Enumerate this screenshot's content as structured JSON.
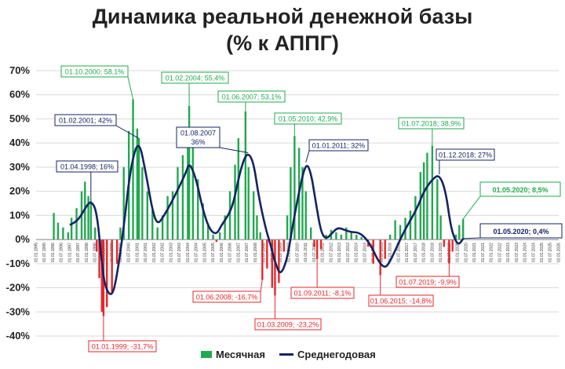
{
  "chart_data": {
    "type": "bar+line",
    "title": "Динамика реальной денежной базы",
    "subtitle": "(% к АППГ)",
    "y_ticks": [
      "70%",
      "60%",
      "50%",
      "40%",
      "30%",
      "20%",
      "10%",
      "0%",
      "-10%",
      "-20%",
      "-30%",
      "-40%"
    ],
    "ylim": [
      -45,
      72
    ],
    "x_start_year": 1995,
    "x_end_year": 2026,
    "x_tick_labels": [
      "01.01.1995",
      "01.07.1995",
      "01.01.1996",
      "01.07.1996",
      "01.01.1997",
      "01.07.1997",
      "01.01.1998",
      "01.07.1998",
      "01.01.1999",
      "01.07.1999",
      "01.01.2000",
      "01.07.2000",
      "01.01.2001",
      "01.07.2001",
      "01.01.2002",
      "01.07.2002",
      "01.01.2003",
      "01.07.2003",
      "01.01.2004",
      "01.07.2004",
      "01.01.2005",
      "01.07.2005",
      "01.01.2006",
      "01.07.2006",
      "01.01.2007",
      "01.07.2007",
      "01.01.2008",
      "01.07.2008",
      "01.01.2009",
      "01.07.2009",
      "01.01.2010",
      "01.07.2010",
      "01.01.2011",
      "01.07.2011",
      "01.01.2012",
      "01.07.2012",
      "01.01.2013",
      "01.07.2013",
      "01.01.2014",
      "01.07.2014",
      "01.01.2015",
      "01.07.2015",
      "01.01.2016",
      "01.07.2016",
      "01.01.2017",
      "01.07.2017",
      "01.01.2018",
      "01.07.2018",
      "01.01.2019",
      "01.07.2019",
      "01.01.2020",
      "01.07.2020",
      "01.01.2021",
      "01.07.2021",
      "01.01.2022",
      "01.07.2022",
      "01.01.2023",
      "01.07.2023",
      "01.01.2024",
      "01.07.2024",
      "01.01.2025",
      "01.07.2025",
      "01.01.2026"
    ],
    "series": [
      {
        "name": "Месячная",
        "kind": "bar",
        "positive_color": "#21a84f",
        "negative_color": "#e8262a",
        "points": [
          [
            1996.0,
            0
          ],
          [
            1996.05,
            11
          ],
          [
            1996.3,
            7
          ],
          [
            1996.6,
            5
          ],
          [
            1996.9,
            3
          ],
          [
            1997.1,
            9
          ],
          [
            1997.4,
            13
          ],
          [
            1997.7,
            20
          ],
          [
            1997.9,
            24
          ],
          [
            1998.1,
            18
          ],
          [
            1998.25,
            16
          ],
          [
            1998.5,
            5
          ],
          [
            1998.6,
            -5
          ],
          [
            1998.75,
            -16
          ],
          [
            1998.9,
            -30
          ],
          [
            1999.0,
            -31.7
          ],
          [
            1999.2,
            -28
          ],
          [
            1999.5,
            -22
          ],
          [
            1999.8,
            -10
          ],
          [
            2000.0,
            5
          ],
          [
            2000.2,
            30
          ],
          [
            2000.5,
            45
          ],
          [
            2000.75,
            58.1
          ],
          [
            2001.0,
            46
          ],
          [
            2001.1,
            42
          ],
          [
            2001.3,
            30
          ],
          [
            2001.6,
            20
          ],
          [
            2001.9,
            12
          ],
          [
            2002.2,
            5
          ],
          [
            2002.5,
            10
          ],
          [
            2002.8,
            18
          ],
          [
            2003.1,
            20
          ],
          [
            2003.4,
            30
          ],
          [
            2003.7,
            35
          ],
          [
            2004.0,
            42
          ],
          [
            2004.08,
            55.4
          ],
          [
            2004.3,
            38
          ],
          [
            2004.6,
            25
          ],
          [
            2004.9,
            15
          ],
          [
            2005.2,
            6
          ],
          [
            2005.5,
            2
          ],
          [
            2005.7,
            -1
          ],
          [
            2005.9,
            3
          ],
          [
            2006.2,
            10
          ],
          [
            2006.5,
            20
          ],
          [
            2006.8,
            31
          ],
          [
            2007.0,
            42
          ],
          [
            2007.42,
            53.1
          ],
          [
            2007.6,
            30
          ],
          [
            2007.9,
            20
          ],
          [
            2008.1,
            10
          ],
          [
            2008.3,
            3
          ],
          [
            2008.42,
            -16.7
          ],
          [
            2008.7,
            -12
          ],
          [
            2009.0,
            -20
          ],
          [
            2009.17,
            -23.2
          ],
          [
            2009.4,
            -18
          ],
          [
            2009.7,
            -5
          ],
          [
            2009.9,
            10
          ],
          [
            2010.1,
            30
          ],
          [
            2010.33,
            42.9
          ],
          [
            2010.6,
            38
          ],
          [
            2010.8,
            30
          ],
          [
            2011.0,
            20
          ],
          [
            2011.3,
            5
          ],
          [
            2011.5,
            -3
          ],
          [
            2011.67,
            -8.1
          ],
          [
            2011.9,
            -4
          ],
          [
            2012.2,
            2
          ],
          [
            2012.5,
            4
          ],
          [
            2012.8,
            3
          ],
          [
            2013.1,
            2
          ],
          [
            2013.4,
            5
          ],
          [
            2013.7,
            3
          ],
          [
            2014.0,
            2
          ],
          [
            2014.3,
            1
          ],
          [
            2014.7,
            -3
          ],
          [
            2015.0,
            -10
          ],
          [
            2015.42,
            -14.8
          ],
          [
            2015.7,
            -8
          ],
          [
            2016.0,
            2
          ],
          [
            2016.3,
            8
          ],
          [
            2016.6,
            6
          ],
          [
            2016.9,
            9
          ],
          [
            2017.2,
            12
          ],
          [
            2017.5,
            18
          ],
          [
            2017.8,
            28
          ],
          [
            2018.0,
            32
          ],
          [
            2018.2,
            36
          ],
          [
            2018.5,
            38.9
          ],
          [
            2018.8,
            25
          ],
          [
            2019.0,
            10
          ],
          [
            2019.2,
            -3
          ],
          [
            2019.5,
            -9.9
          ],
          [
            2019.7,
            -5
          ],
          [
            2019.9,
            2
          ],
          [
            2020.1,
            6
          ],
          [
            2020.33,
            8.5
          ]
        ]
      },
      {
        "name": "Среднегодовая",
        "kind": "line",
        "color": "#142363",
        "points": [
          [
            1997.0,
            6
          ],
          [
            1997.5,
            8
          ],
          [
            1998.0,
            14
          ],
          [
            1998.25,
            16
          ],
          [
            1998.6,
            12
          ],
          [
            1998.9,
            -10
          ],
          [
            1999.1,
            -20
          ],
          [
            1999.5,
            -24
          ],
          [
            1999.8,
            -15
          ],
          [
            2000.2,
            5
          ],
          [
            2000.6,
            30
          ],
          [
            2001.08,
            42
          ],
          [
            2001.5,
            28
          ],
          [
            2001.9,
            12
          ],
          [
            2002.2,
            6
          ],
          [
            2002.6,
            10
          ],
          [
            2003.0,
            15
          ],
          [
            2003.5,
            22
          ],
          [
            2003.9,
            28
          ],
          [
            2004.1,
            32
          ],
          [
            2004.5,
            25
          ],
          [
            2004.9,
            12
          ],
          [
            2005.3,
            4
          ],
          [
            2005.7,
            2
          ],
          [
            2006.0,
            6
          ],
          [
            2006.4,
            10
          ],
          [
            2006.7,
            15
          ],
          [
            2007.0,
            25
          ],
          [
            2007.3,
            33
          ],
          [
            2007.58,
            36
          ],
          [
            2007.9,
            32
          ],
          [
            2008.2,
            18
          ],
          [
            2008.6,
            5
          ],
          [
            2008.9,
            -2
          ],
          [
            2009.2,
            -10
          ],
          [
            2009.5,
            -15
          ],
          [
            2009.9,
            -8
          ],
          [
            2010.2,
            5
          ],
          [
            2010.6,
            20
          ],
          [
            2011.0,
            32
          ],
          [
            2011.3,
            28
          ],
          [
            2011.6,
            15
          ],
          [
            2011.9,
            3
          ],
          [
            2012.2,
            0
          ],
          [
            2012.6,
            3
          ],
          [
            2012.9,
            5
          ],
          [
            2013.3,
            4
          ],
          [
            2013.7,
            3
          ],
          [
            2014.1,
            3
          ],
          [
            2014.5,
            1
          ],
          [
            2014.9,
            -3
          ],
          [
            2015.3,
            -9
          ],
          [
            2015.7,
            -12
          ],
          [
            2016.0,
            -9
          ],
          [
            2016.4,
            -3
          ],
          [
            2016.8,
            3
          ],
          [
            2017.2,
            8
          ],
          [
            2017.6,
            13
          ],
          [
            2018.0,
            20
          ],
          [
            2018.5,
            25
          ],
          [
            2018.92,
            27
          ],
          [
            2019.3,
            20
          ],
          [
            2019.6,
            5
          ],
          [
            2019.9,
            -1
          ],
          [
            2020.1,
            -2
          ],
          [
            2020.33,
            0.4
          ]
        ]
      }
    ],
    "annotations": [
      {
        "text": "01.10.2000; 58,1%",
        "series": "Месячная"
      },
      {
        "text": "01.02.2004; 55,4%",
        "series": "Месячная"
      },
      {
        "text": "01.06.2007; 53,1%",
        "series": "Месячная"
      },
      {
        "text": "01.05.2010; 42,9%",
        "series": "Месячная"
      },
      {
        "text": "01.07.2018; 38,9%",
        "series": "Месячная"
      },
      {
        "text": "01.02.2001; 42%",
        "series": "Среднегодовая"
      },
      {
        "text": "01.08.2007",
        "text2": "36%",
        "series": "Среднегодовая"
      },
      {
        "text": "01.04.1998; 16%",
        "series": "Среднегодовая"
      },
      {
        "text": "01.01.2011; 32%",
        "series": "Среднегодовая"
      },
      {
        "text": "01.12.2018; 27%",
        "series": "Среднегодовая"
      },
      {
        "text": "01.05.2020; 8,5%",
        "series": "Месячная",
        "large": true
      },
      {
        "text": "01.05.2020; 0,4%",
        "series": "Среднегодовая",
        "large": true
      },
      {
        "text": "01.01.1999; -31,7%",
        "series": "Месячная",
        "negative": true
      },
      {
        "text": "01.06.2008; -16,7%",
        "series": "Месячная",
        "negative": true
      },
      {
        "text": "01.03.2009; -23,2%",
        "series": "Месячная",
        "negative": true
      },
      {
        "text": "01.09.2011; -8,1%",
        "series": "Месячная",
        "negative": true
      },
      {
        "text": "01.06.2015; -14,8%",
        "series": "Месячная",
        "negative": true
      },
      {
        "text": "01.07.2019; -9,9%",
        "series": "Месячная",
        "negative": true
      }
    ],
    "legend": {
      "placement": "bottom-center",
      "items": [
        "Месячная",
        "Среднегодовая"
      ]
    },
    "grid": true
  }
}
